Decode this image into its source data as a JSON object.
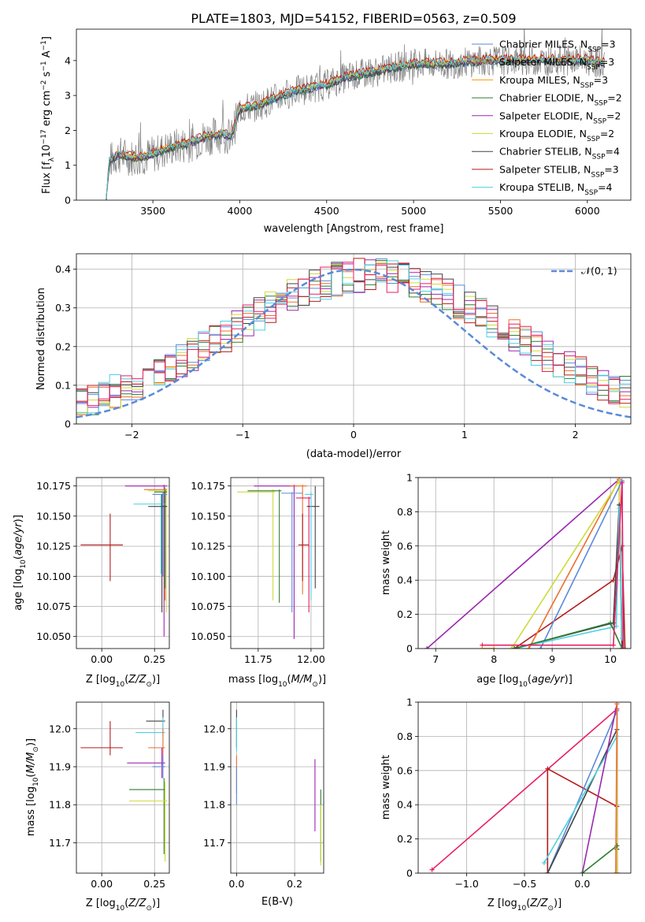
{
  "chart_data": [
    {
      "type": "line",
      "panel": "spectrum",
      "title": "PLATE=1803, MJD=54152, FIBERID=0563, z=0.509",
      "xlabel": "wavelength [Angstrom, rest frame]",
      "ylabel": "Flux [f",
      "ylabel_lambda": "λ",
      "ylabel_rest": "10",
      "ylabel_exp": "−17",
      "ylabel_units": " erg cm",
      "ylabel_units_exp": "−2",
      "ylabel_units2": " s",
      "ylabel_units2_exp": "−1",
      "ylabel_units3": " A",
      "ylabel_units3_exp": "−1",
      "ylabel_close": "]",
      "xlim": [
        3060,
        6250
      ],
      "ylim": [
        0,
        4.9
      ],
      "xticks": [
        3500,
        4000,
        4500,
        5000,
        5500,
        6000
      ],
      "yticks": [
        0,
        1,
        2,
        3,
        4
      ],
      "legend_position": "top-right",
      "legend": [
        {
          "name": "Chabrier MILES, N",
          "sub": "SSP",
          "tail": "=3",
          "color": "#5a8ad8"
        },
        {
          "name": "Salpeter MILES, N",
          "sub": "SSP",
          "tail": "=3",
          "color": "#ee6f2d"
        },
        {
          "name": "Kroupa MILES, N",
          "sub": "SSP",
          "tail": "=3",
          "color": "#ff9700"
        },
        {
          "name": "Chabrier ELODIE, N",
          "sub": "SSP",
          "tail": "=2",
          "color": "#2e7d32"
        },
        {
          "name": "Salpeter ELODIE, N",
          "sub": "SSP",
          "tail": "=2",
          "color": "#9c27b0"
        },
        {
          "name": "Kroupa ELODIE, N",
          "sub": "SSP",
          "tail": "=2",
          "color": "#cddc39"
        },
        {
          "name": "Chabrier STELIB, N",
          "sub": "SSP",
          "tail": "=4",
          "color": "#424242"
        },
        {
          "name": "Salpeter STELIB, N",
          "sub": "SSP",
          "tail": "=3",
          "color": "#b71c1c"
        },
        {
          "name": "Kroupa STELIB, N",
          "sub": "SSP",
          "tail": "=4",
          "color": "#4dd0e1"
        }
      ],
      "continuum_knots": {
        "x": [
          3230,
          3250,
          3300,
          3400,
          3500,
          3600,
          3700,
          3800,
          3900,
          3950,
          4000,
          4100,
          4200,
          4300,
          4400,
          4500,
          4600,
          4700,
          4800,
          4900,
          5000,
          5200,
          5400,
          5600,
          5800,
          6000,
          6100
        ],
        "y": [
          0,
          1.1,
          1.3,
          1.2,
          1.3,
          1.5,
          1.6,
          1.8,
          1.9,
          1.8,
          2.6,
          2.7,
          2.9,
          3.1,
          3.2,
          3.3,
          3.5,
          3.6,
          3.7,
          3.8,
          3.9,
          3.9,
          4.0,
          4.0,
          4.0,
          4.0,
          3.9
        ]
      }
    },
    {
      "type": "line",
      "panel": "residual-histogram",
      "xlabel": "(data-model)/error",
      "ylabel": "Normed distribution",
      "xlim": [
        -2.5,
        2.5
      ],
      "ylim": [
        0,
        0.44
      ],
      "xticks": [
        -2,
        -1,
        0,
        1,
        2
      ],
      "yticks": [
        0.0,
        0.1,
        0.2,
        0.3,
        0.4
      ],
      "grid": true,
      "legend_position": "top-right",
      "legend": [
        {
          "name": "𝒩(0, 1)",
          "color": "#5a8ad8",
          "dashed": true
        }
      ]
    },
    {
      "type": "scatter",
      "panel": "age-vs-Z",
      "xlabel": "Z [log",
      "xlabel_sub": "10",
      "xlabel_rest": "(Z/Z",
      "xlabel_sun": "⊙",
      "xlabel_close": ")]",
      "ylabel": "age  [log",
      "ylabel_sub": "10",
      "ylabel_rest": "(age/yr)]",
      "xlim": [
        -0.12,
        0.32
      ],
      "ylim": [
        10.04,
        10.182
      ],
      "xticks": [
        0.0,
        0.25
      ],
      "xticklabels": [
        "0.00",
        "0.25"
      ],
      "yticks": [
        10.05,
        10.075,
        10.1,
        10.125,
        10.15,
        10.175
      ],
      "yticklabels": [
        "10.050",
        "10.075",
        "10.100",
        "10.125",
        "10.150",
        "10.175"
      ],
      "grid": true,
      "points": [
        {
          "x": 0.04,
          "y": 10.126,
          "xlo": -0.1,
          "xhi": 0.1,
          "ylo": 10.096,
          "yhi": 10.152,
          "color": "#b71c1c"
        },
        {
          "x": 0.295,
          "y": 10.175,
          "xlo": 0.11,
          "xhi": 0.31,
          "ylo": 10.05,
          "yhi": 10.176,
          "color": "#9c27b0"
        },
        {
          "x": 0.3,
          "y": 10.172,
          "xlo": 0.2,
          "xhi": 0.31,
          "ylo": 10.08,
          "yhi": 10.174,
          "color": "#ee6f2d"
        },
        {
          "x": 0.305,
          "y": 10.171,
          "xlo": 0.22,
          "xhi": 0.31,
          "ylo": 10.07,
          "yhi": 10.173,
          "color": "#cddc39"
        },
        {
          "x": 0.3,
          "y": 10.17,
          "xlo": 0.25,
          "xhi": 0.31,
          "ylo": 10.09,
          "yhi": 10.172,
          "color": "#2e7d32"
        },
        {
          "x": 0.29,
          "y": 10.168,
          "xlo": 0.24,
          "xhi": 0.31,
          "ylo": 10.1,
          "yhi": 10.17,
          "color": "#5a8ad8"
        },
        {
          "x": 0.28,
          "y": 10.16,
          "xlo": 0.15,
          "xhi": 0.3,
          "ylo": 10.102,
          "yhi": 10.168,
          "color": "#4dd0e1"
        },
        {
          "x": 0.285,
          "y": 10.158,
          "xlo": 0.22,
          "xhi": 0.31,
          "ylo": 10.07,
          "yhi": 10.168,
          "color": "#424242"
        }
      ]
    },
    {
      "type": "scatter",
      "panel": "age-vs-mass",
      "xlabel": "mass [log",
      "xlabel_sub": "10",
      "xlabel_rest": "(M/M",
      "xlabel_sun": "⊙",
      "xlabel_close": ")]",
      "xlim": [
        11.62,
        12.06
      ],
      "ylim": [
        10.04,
        10.182
      ],
      "xticks": [
        11.75,
        12.0
      ],
      "xticklabels": [
        "11.75",
        "12.00"
      ],
      "yticks": [
        10.05,
        10.075,
        10.1,
        10.125,
        10.15,
        10.175
      ],
      "yticklabels": [
        "10.050",
        "10.075",
        "10.100",
        "10.125",
        "10.150",
        "10.175"
      ],
      "grid": true,
      "points": [
        {
          "x": 11.92,
          "y": 10.175,
          "xlo": 11.73,
          "xhi": 11.93,
          "ylo": 10.048,
          "yhi": 10.176,
          "color": "#9c27b0"
        },
        {
          "x": 11.82,
          "y": 10.17,
          "xlo": 11.65,
          "xhi": 11.83,
          "ylo": 10.08,
          "yhi": 10.172,
          "color": "#cddc39"
        },
        {
          "x": 11.85,
          "y": 10.171,
          "xlo": 11.7,
          "xhi": 11.86,
          "ylo": 10.078,
          "yhi": 10.172,
          "color": "#2e7d32"
        },
        {
          "x": 11.96,
          "y": 10.175,
          "xlo": 11.9,
          "xhi": 11.98,
          "ylo": 10.085,
          "yhi": 10.176,
          "color": "#ee6f2d"
        },
        {
          "x": 11.91,
          "y": 10.169,
          "xlo": 11.86,
          "xhi": 11.96,
          "ylo": 10.07,
          "yhi": 10.17,
          "color": "#5a8ad8"
        },
        {
          "x": 11.99,
          "y": 10.165,
          "xlo": 11.93,
          "xhi": 12.0,
          "ylo": 10.07,
          "yhi": 10.166,
          "color": "#e91e63"
        },
        {
          "x": 12.02,
          "y": 10.158,
          "xlo": 11.98,
          "xhi": 12.04,
          "ylo": 10.09,
          "yhi": 10.175,
          "color": "#424242"
        },
        {
          "x": 11.96,
          "y": 10.126,
          "xlo": 11.94,
          "xhi": 11.99,
          "ylo": 10.096,
          "yhi": 10.152,
          "color": "#b71c1c"
        },
        {
          "x": 12.0,
          "y": 10.168,
          "xlo": 11.97,
          "xhi": 12.01,
          "ylo": 10.08,
          "yhi": 10.17,
          "color": "#4dd0e1"
        }
      ]
    },
    {
      "type": "line",
      "panel": "mass-weight-vs-age",
      "xlabel": "age  [log",
      "xlabel_sub": "10",
      "xlabel_rest": "(age/yr)]",
      "ylabel": "mass weight",
      "xlim": [
        6.7,
        10.35
      ],
      "ylim": [
        0,
        1.0
      ],
      "xticks": [
        7,
        8,
        9,
        10
      ],
      "yticks": [
        0.0,
        0.2,
        0.4,
        0.6,
        0.8,
        1.0
      ],
      "grid": true,
      "series": [
        {
          "color": "#9c27b0",
          "x": [
            6.85,
            10.15,
            10.2
          ],
          "y": [
            0.0,
            0.99,
            0.0
          ]
        },
        {
          "color": "#b71c1c",
          "x": [
            8.35,
            10.05,
            10.2,
            10.25
          ],
          "y": [
            0.0,
            0.4,
            0.6,
            0.0
          ]
        },
        {
          "color": "#ee6f2d",
          "x": [
            8.6,
            10.15,
            10.2
          ],
          "y": [
            0.0,
            0.99,
            0.0
          ]
        },
        {
          "color": "#cddc39",
          "x": [
            8.3,
            10.15,
            10.2
          ],
          "y": [
            0.0,
            0.98,
            0.0
          ]
        },
        {
          "color": "#5a8ad8",
          "x": [
            8.8,
            10.2,
            10.22
          ],
          "y": [
            0.0,
            0.98,
            0.0
          ]
        },
        {
          "color": "#424242",
          "x": [
            8.35,
            10.05,
            10.15,
            10.2
          ],
          "y": [
            0.0,
            0.15,
            0.84,
            0.0
          ]
        },
        {
          "color": "#4dd0e1",
          "x": [
            8.35,
            10.1,
            10.15,
            10.2
          ],
          "y": [
            0.0,
            0.13,
            0.82,
            0.06
          ]
        },
        {
          "color": "#2e7d32",
          "x": [
            8.35,
            10.0,
            10.2
          ],
          "y": [
            0.0,
            0.15,
            0.0
          ]
        },
        {
          "color": "#e91e63",
          "x": [
            7.8,
            10.05,
            10.2,
            10.22
          ],
          "y": [
            0.02,
            0.02,
            0.97,
            0.0
          ]
        },
        {
          "color": "#ff9700",
          "x": [
            7.8,
            8.0
          ],
          "y": [
            0.0,
            0.0
          ]
        }
      ]
    },
    {
      "type": "scatter",
      "panel": "mass-vs-Z",
      "xlabel": "Z [log",
      "xlabel_sub": "10",
      "xlabel_rest": "(Z/Z",
      "xlabel_sun": "⊙",
      "xlabel_close": ")]",
      "ylabel": "mass [log",
      "ylabel_sub": "10",
      "ylabel_rest": "(M/M",
      "ylabel_sun": "⊙",
      "ylabel_close": ")]",
      "xlim": [
        -0.12,
        0.32
      ],
      "ylim": [
        11.62,
        12.07
      ],
      "xticks": [
        0.0,
        0.25
      ],
      "xticklabels": [
        "0.00",
        "0.25"
      ],
      "yticks": [
        11.7,
        11.8,
        11.9,
        12.0
      ],
      "yticklabels": [
        "11.7",
        "11.8",
        "11.9",
        "12.0"
      ],
      "grid": true,
      "points": [
        {
          "x": 0.04,
          "y": 11.95,
          "xlo": -0.1,
          "xhi": 0.1,
          "ylo": 11.93,
          "yhi": 12.02,
          "color": "#b71c1c"
        },
        {
          "x": 0.29,
          "y": 12.02,
          "xlo": 0.21,
          "xhi": 0.3,
          "ylo": 11.98,
          "yhi": 12.05,
          "color": "#424242"
        },
        {
          "x": 0.29,
          "y": 11.99,
          "xlo": 0.16,
          "xhi": 0.3,
          "ylo": 11.95,
          "yhi": 12.03,
          "color": "#4dd0e1"
        },
        {
          "x": 0.29,
          "y": 11.95,
          "xlo": 0.22,
          "xhi": 0.3,
          "ylo": 11.9,
          "yhi": 12.0,
          "color": "#ee6f2d"
        },
        {
          "x": 0.285,
          "y": 11.91,
          "xlo": 0.12,
          "xhi": 0.3,
          "ylo": 11.87,
          "yhi": 11.95,
          "color": "#9c27b0"
        },
        {
          "x": 0.29,
          "y": 11.9,
          "xlo": 0.24,
          "xhi": 0.3,
          "ylo": 11.87,
          "yhi": 11.93,
          "color": "#5a8ad8"
        },
        {
          "x": 0.295,
          "y": 11.84,
          "xlo": 0.13,
          "xhi": 0.3,
          "ylo": 11.67,
          "yhi": 11.87,
          "color": "#2e7d32"
        },
        {
          "x": 0.3,
          "y": 11.81,
          "xlo": 0.13,
          "xhi": 0.31,
          "ylo": 11.65,
          "yhi": 11.86,
          "color": "#cddc39"
        }
      ]
    },
    {
      "type": "scatter",
      "panel": "mass-vs-EBV",
      "xlabel": "E(B-V)",
      "xlim": [
        -0.02,
        0.3
      ],
      "ylim": [
        11.62,
        12.07
      ],
      "xticks": [
        0.0,
        0.2
      ],
      "xticklabels": [
        "0.0",
        "0.2"
      ],
      "yticks": [
        11.7,
        11.8,
        11.9,
        12.0
      ],
      "yticklabels": [
        "11.7",
        "11.8",
        "11.9",
        "12.0"
      ],
      "grid": true,
      "points": [
        {
          "x": 0.0,
          "y": 12.0,
          "ylo": 11.95,
          "yhi": 12.05,
          "color": "#424242"
        },
        {
          "x": 0.0,
          "y": 11.98,
          "ylo": 11.94,
          "yhi": 12.03,
          "color": "#4dd0e1"
        },
        {
          "x": 0.0,
          "y": 11.88,
          "ylo": 11.83,
          "yhi": 11.93,
          "color": "#ee6f2d"
        },
        {
          "x": 0.0,
          "y": 11.85,
          "ylo": 11.8,
          "yhi": 11.9,
          "color": "#5a8ad8"
        },
        {
          "x": 0.27,
          "y": 11.85,
          "ylo": 11.73,
          "yhi": 11.92,
          "color": "#9c27b0"
        },
        {
          "x": 0.29,
          "y": 11.79,
          "ylo": 11.65,
          "yhi": 11.84,
          "color": "#2e7d32"
        },
        {
          "x": 0.29,
          "y": 11.74,
          "ylo": 11.64,
          "yhi": 11.8,
          "color": "#cddc39"
        }
      ]
    },
    {
      "type": "line",
      "panel": "mass-weight-vs-Z",
      "xlabel": "Z [log",
      "xlabel_sub": "10",
      "xlabel_rest": "(Z/Z",
      "xlabel_sun": "⊙",
      "xlabel_close": ")]",
      "ylabel": "mass weight",
      "xlim": [
        -1.42,
        0.42
      ],
      "ylim": [
        0,
        1.0
      ],
      "xticks": [
        -1.0,
        -0.5,
        0.0
      ],
      "xticklabels": [
        "−1.0",
        "−0.5",
        "0.0"
      ],
      "yticks": [
        0.0,
        0.2,
        0.4,
        0.6,
        0.8,
        1.0
      ],
      "grid": true,
      "series": [
        {
          "color": "#e91e63",
          "x": [
            -1.3,
            0.3,
            0.3
          ],
          "y": [
            0.02,
            0.96,
            0.0
          ]
        },
        {
          "color": "#b71c1c",
          "x": [
            -0.3,
            -0.3,
            0.3,
            0.3
          ],
          "y": [
            0.0,
            0.61,
            0.39,
            0.0
          ]
        },
        {
          "color": "#5a8ad8",
          "x": [
            -0.3,
            0.3,
            0.3
          ],
          "y": [
            0.0,
            0.95,
            0.0
          ]
        },
        {
          "color": "#424242",
          "x": [
            -0.3,
            0.3,
            0.3
          ],
          "y": [
            0.0,
            0.84,
            0.14
          ]
        },
        {
          "color": "#4dd0e1",
          "x": [
            -0.33,
            0.3,
            0.3
          ],
          "y": [
            0.06,
            0.8,
            0.0
          ]
        },
        {
          "color": "#9c27b0",
          "x": [
            0.0,
            0.3,
            0.3
          ],
          "y": [
            0.0,
            0.99,
            0.0
          ]
        },
        {
          "color": "#cddc39",
          "x": [
            0.3,
            0.3
          ],
          "y": [
            0.0,
            0.99
          ]
        },
        {
          "color": "#2e7d32",
          "x": [
            0.0,
            0.3
          ],
          "y": [
            0.0,
            0.16
          ]
        },
        {
          "color": "#ee6f2d",
          "x": [
            0.29,
            0.3
          ],
          "y": [
            0.0,
            0.99
          ]
        }
      ]
    }
  ]
}
